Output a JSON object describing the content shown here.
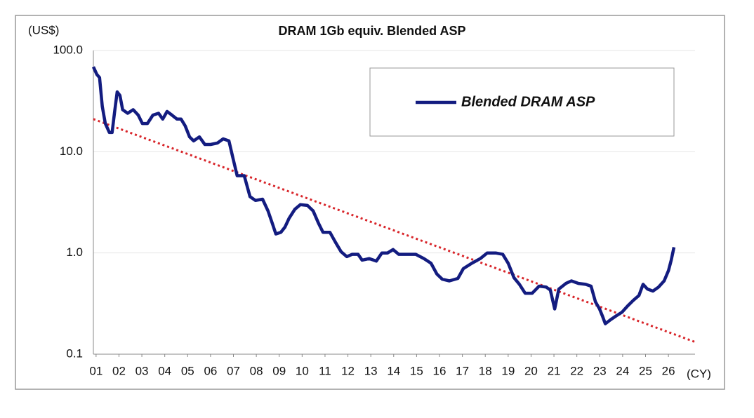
{
  "chart_data": {
    "type": "line",
    "title": "DRAM 1Gb equiv. Blended ASP",
    "y_unit": "(US$)",
    "x_unit": "(CY)",
    "log_y": true,
    "grid": true,
    "legend": "upper right",
    "ylim": [
      0.1,
      100
    ],
    "yticks": [
      {
        "value": 100,
        "label": "100.0"
      },
      {
        "value": 10,
        "label": "10.0"
      },
      {
        "value": 1,
        "label": "1.0"
      },
      0.1
    ],
    "xlim": [
      0.79,
      27.07
    ],
    "xticks": [
      {
        "value": 1,
        "label": "01"
      },
      {
        "value": 2,
        "label": "02"
      },
      {
        "value": 3,
        "label": "03"
      },
      {
        "value": 4,
        "label": "04"
      },
      {
        "value": 5,
        "label": "05"
      },
      {
        "value": 6,
        "label": "06"
      },
      {
        "value": 7,
        "label": "07"
      },
      {
        "value": 8,
        "label": "08"
      },
      {
        "value": 9,
        "label": "09"
      },
      10,
      11,
      12,
      13,
      14,
      15,
      16,
      17,
      18,
      19,
      20,
      21,
      22,
      23,
      24,
      25,
      26
    ],
    "series": [
      {
        "name": "Blended DRAM ASP",
        "color": "#131c80",
        "x": [
          0.79,
          0.94,
          1.06,
          1.18,
          1.31,
          1.49,
          1.61,
          1.71,
          1.83,
          1.95,
          2.07,
          2.29,
          2.53,
          2.75,
          2.93,
          3.15,
          3.39,
          3.64,
          3.82,
          4.01,
          4.22,
          4.44,
          4.62,
          4.8,
          4.99,
          5.17,
          5.42,
          5.66,
          5.91,
          6.21,
          6.46,
          6.71,
          6.89,
          7.07,
          7.38,
          7.63,
          7.87,
          8.18,
          8.42,
          8.61,
          8.76,
          8.98,
          9.16,
          9.34,
          9.59,
          9.83,
          10.14,
          10.39,
          10.63,
          10.82,
          11.12,
          11.37,
          11.61,
          11.86,
          12.1,
          12.35,
          12.53,
          12.84,
          13.15,
          13.39,
          13.64,
          13.88,
          14.13,
          14.5,
          14.87,
          15.23,
          15.54,
          15.79,
          16.03,
          16.34,
          16.71,
          16.95,
          17.32,
          17.69,
          17.99,
          18.36,
          18.67,
          18.91,
          19.16,
          19.4,
          19.65,
          19.96,
          20.26,
          20.57,
          20.75,
          20.94,
          21.12,
          21.43,
          21.67,
          21.98,
          22.29,
          22.53,
          22.72,
          22.9,
          23.02,
          23.15,
          23.39,
          23.64,
          23.88,
          24.13,
          24.37,
          24.62,
          24.8,
          24.99,
          25.23,
          25.48,
          25.72,
          25.91,
          26.03,
          26.15
        ],
        "values": [
          69,
          58,
          54,
          28,
          19,
          15.5,
          15.5,
          24,
          39,
          36,
          26,
          24,
          26,
          23,
          19,
          19,
          23,
          24,
          21,
          25,
          23,
          21,
          21,
          18,
          14,
          12.8,
          14,
          11.8,
          11.8,
          12.2,
          13.4,
          12.8,
          8.6,
          5.8,
          5.8,
          3.6,
          3.3,
          3.4,
          2.6,
          1.95,
          1.54,
          1.6,
          1.8,
          2.2,
          2.7,
          3.0,
          2.95,
          2.6,
          1.95,
          1.6,
          1.6,
          1.27,
          1.03,
          0.92,
          0.97,
          0.97,
          0.85,
          0.88,
          0.83,
          1.0,
          1.0,
          1.08,
          0.97,
          0.97,
          0.97,
          0.88,
          0.79,
          0.62,
          0.55,
          0.53,
          0.56,
          0.7,
          0.79,
          0.88,
          1.0,
          1.0,
          0.97,
          0.79,
          0.57,
          0.49,
          0.4,
          0.4,
          0.47,
          0.46,
          0.43,
          0.28,
          0.44,
          0.5,
          0.53,
          0.5,
          0.49,
          0.47,
          0.33,
          0.28,
          0.24,
          0.2,
          0.22,
          0.24,
          0.26,
          0.3,
          0.34,
          0.38,
          0.49,
          0.44,
          0.42,
          0.46,
          0.53,
          0.67,
          0.85,
          1.14
        ]
      }
    ],
    "trend": {
      "color": "#d8252a",
      "x": [
        0.79,
        27.07
      ],
      "values": [
        21,
        0.132
      ]
    }
  }
}
